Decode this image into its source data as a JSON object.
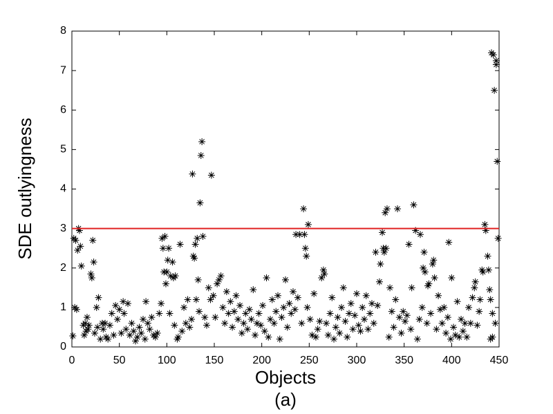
{
  "chart_data": {
    "type": "scatter",
    "xlabel": "Objects",
    "ylabel": "SDE outlyingness",
    "caption": "(a)",
    "marker": "*",
    "color": "#000000",
    "threshold": {
      "value": 3,
      "color": "#e02020"
    },
    "xlim": [
      0,
      450
    ],
    "ylim": [
      0,
      8
    ],
    "xticks": [
      0,
      50,
      100,
      150,
      200,
      250,
      300,
      350,
      400,
      450
    ],
    "yticks": [
      0,
      1,
      2,
      3,
      4,
      5,
      6,
      7,
      8
    ],
    "x": [
      1,
      2,
      3,
      4,
      5,
      6,
      7,
      8,
      9,
      10,
      12,
      13,
      14,
      15,
      16,
      17,
      18,
      20,
      21,
      22,
      23,
      24,
      26,
      27,
      28,
      30,
      32,
      33,
      35,
      36,
      38,
      40,
      42,
      44,
      46,
      48,
      50,
      52,
      54,
      55,
      57,
      59,
      61,
      63,
      65,
      67,
      69,
      71,
      73,
      75,
      77,
      78,
      80,
      82,
      84,
      86,
      88,
      90,
      92,
      94,
      95,
      96,
      97,
      98,
      99,
      100,
      101,
      102,
      103,
      104,
      106,
      107,
      108,
      109,
      111,
      112,
      114,
      116,
      118,
      120,
      122,
      124,
      126,
      127,
      128,
      129,
      130,
      131,
      132,
      133,
      134,
      135,
      136,
      137,
      138,
      140,
      142,
      144,
      146,
      147,
      149,
      151,
      153,
      155,
      157,
      159,
      161,
      163,
      165,
      167,
      169,
      171,
      173,
      175,
      177,
      179,
      181,
      183,
      185,
      187,
      189,
      191,
      193,
      195,
      197,
      199,
      201,
      203,
      205,
      207,
      209,
      211,
      213,
      215,
      217,
      219,
      221,
      223,
      225,
      227,
      229,
      231,
      233,
      235,
      236,
      238,
      240,
      242,
      244,
      245,
      246,
      247,
      248,
      249,
      251,
      253,
      255,
      257,
      259,
      261,
      263,
      265,
      266,
      268,
      270,
      272,
      274,
      276,
      278,
      280,
      282,
      284,
      286,
      288,
      290,
      292,
      294,
      296,
      298,
      300,
      302,
      304,
      306,
      308,
      310,
      312,
      314,
      316,
      318,
      320,
      322,
      324,
      325,
      327,
      328,
      329,
      330,
      331,
      332,
      334,
      335,
      337,
      339,
      341,
      343,
      345,
      347,
      349,
      351,
      353,
      355,
      357,
      358,
      360,
      362,
      364,
      366,
      367,
      369,
      370,
      371,
      372,
      374,
      375,
      376,
      378,
      380,
      381,
      382,
      384,
      386,
      388,
      390,
      392,
      394,
      396,
      397,
      399,
      400,
      402,
      404,
      406,
      408,
      410,
      412,
      414,
      416,
      418,
      420,
      422,
      424,
      425,
      427,
      429,
      430,
      432,
      433,
      435,
      436,
      438,
      439,
      440,
      441,
      442,
      443,
      444,
      445,
      446,
      447,
      447,
      448,
      449,
      443,
      441
    ],
    "values": [
      0.28,
      2.75,
      1.0,
      2.7,
      0.95,
      2.45,
      3.0,
      2.95,
      2.55,
      2.05,
      0.55,
      0.3,
      0.6,
      0.4,
      0.75,
      0.45,
      0.55,
      1.85,
      1.75,
      2.7,
      2.15,
      0.35,
      1.0,
      0.5,
      1.25,
      0.2,
      0.6,
      0.45,
      0.6,
      0.25,
      0.2,
      0.55,
      0.85,
      0.3,
      1.05,
      0.7,
      0.95,
      0.35,
      1.15,
      0.85,
      0.45,
      1.1,
      0.3,
      0.6,
      0.4,
      0.15,
      0.25,
      0.5,
      0.35,
      0.7,
      0.2,
      1.15,
      0.6,
      0.45,
      0.75,
      0.3,
      0.25,
      0.35,
      0.85,
      1.1,
      2.75,
      2.5,
      1.9,
      2.8,
      1.6,
      1.9,
      2.2,
      2.5,
      0.85,
      1.8,
      2.15,
      1.75,
      0.55,
      1.8,
      0.2,
      0.25,
      2.6,
      0.4,
      1.0,
      0.6,
      1.2,
      0.5,
      0.7,
      4.38,
      2.3,
      2.25,
      2.6,
      1.2,
      2.75,
      1.7,
      0.9,
      3.65,
      4.85,
      5.2,
      2.8,
      0.75,
      0.55,
      1.5,
      1.2,
      4.35,
      1.3,
      0.75,
      1.6,
      1.7,
      1.8,
      1.0,
      0.6,
      1.4,
      0.85,
      1.15,
      0.5,
      0.9,
      1.3,
      0.7,
      1.05,
      0.35,
      0.6,
      0.85,
      0.45,
      0.95,
      0.7,
      1.45,
      0.3,
      0.6,
      0.85,
      0.55,
      1.05,
      0.4,
      1.75,
      0.25,
      0.7,
      1.2,
      0.6,
      0.9,
      1.3,
      0.2,
      0.75,
      1.0,
      1.7,
      0.5,
      1.1,
      0.85,
      1.4,
      0.95,
      2.85,
      1.25,
      2.85,
      0.6,
      3.5,
      2.85,
      2.5,
      2.3,
      1.0,
      3.1,
      0.7,
      0.3,
      1.35,
      0.25,
      0.45,
      0.65,
      1.75,
      1.95,
      1.85,
      0.6,
      0.3,
      0.85,
      1.25,
      0.2,
      0.5,
      0.75,
      0.35,
      1.0,
      1.5,
      0.65,
      0.25,
      0.85,
      1.1,
      0.45,
      0.8,
      1.35,
      0.55,
      0.4,
      1.0,
      0.7,
      1.3,
      0.45,
      0.85,
      1.1,
      0.6,
      2.4,
      1.05,
      1.65,
      2.1,
      2.9,
      2.5,
      2.4,
      3.4,
      2.5,
      3.5,
      0.25,
      1.5,
      0.9,
      0.5,
      1.2,
      3.5,
      0.75,
      0.35,
      0.9,
      0.65,
      0.8,
      2.6,
      0.45,
      1.5,
      3.6,
      2.95,
      0.2,
      0.7,
      2.85,
      1.0,
      2.0,
      2.4,
      1.9,
      0.6,
      1.55,
      1.6,
      0.85,
      2.1,
      2.2,
      1.75,
      0.45,
      1.3,
      0.95,
      0.6,
      1.0,
      0.35,
      0.75,
      2.65,
      0.2,
      1.75,
      0.5,
      0.3,
      1.15,
      0.25,
      0.7,
      0.4,
      0.6,
      0.25,
      1.0,
      0.6,
      1.25,
      1.5,
      1.65,
      0.55,
      0.9,
      1.2,
      1.95,
      1.9,
      3.1,
      2.95,
      2.3,
      1.95,
      1.45,
      1.2,
      7.45,
      0.85,
      7.4,
      6.5,
      0.6,
      7.25,
      7.15,
      4.7,
      2.75,
      0.25,
      0.2
    ]
  }
}
